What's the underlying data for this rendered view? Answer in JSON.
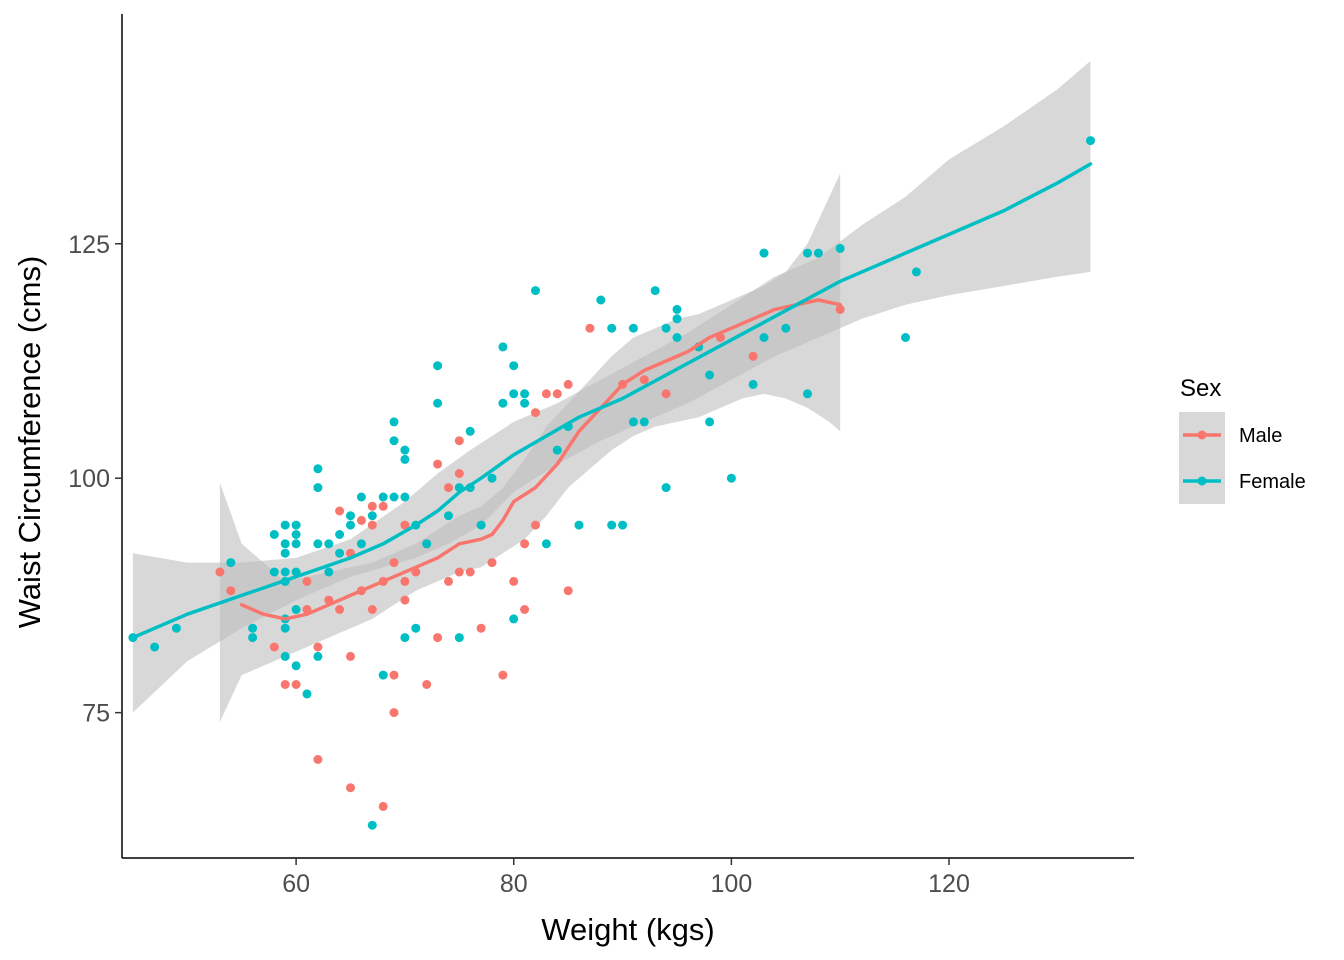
{
  "chart_data": {
    "type": "scatter",
    "xlabel": "Weight (kgs)",
    "ylabel": "Waist Circumference (cms)",
    "xlim": [
      44,
      137
    ],
    "ylim": [
      59.5,
      149.5
    ],
    "x_ticks": [
      60,
      80,
      100,
      120
    ],
    "y_ticks": [
      75,
      100,
      125
    ],
    "x_tick_labels": [
      "60",
      "80",
      "100",
      "120"
    ],
    "y_tick_labels": [
      "75",
      "100",
      "125"
    ],
    "grid": false,
    "legend": {
      "title": "Sex",
      "position": "right"
    },
    "colors": {
      "Male": "#F8766D",
      "Female": "#00BFC4",
      "band": "#BEBEBE"
    },
    "series": [
      {
        "name": "Male",
        "color": "#F8766D",
        "points": [
          [
            53,
            90
          ],
          [
            54,
            88
          ],
          [
            58,
            82
          ],
          [
            59,
            78
          ],
          [
            60,
            78
          ],
          [
            61,
            86
          ],
          [
            61,
            89
          ],
          [
            62,
            82
          ],
          [
            62,
            70
          ],
          [
            63,
            87
          ],
          [
            64,
            96.5
          ],
          [
            64,
            86
          ],
          [
            65,
            92
          ],
          [
            65,
            81
          ],
          [
            65,
            67
          ],
          [
            66,
            88
          ],
          [
            66,
            95.5
          ],
          [
            67,
            97
          ],
          [
            67,
            95
          ],
          [
            67,
            86
          ],
          [
            68,
            65
          ],
          [
            68,
            97
          ],
          [
            68,
            89
          ],
          [
            69,
            91
          ],
          [
            69,
            79
          ],
          [
            69,
            75
          ],
          [
            70,
            95
          ],
          [
            70,
            89
          ],
          [
            70,
            87
          ],
          [
            71,
            90
          ],
          [
            72,
            93
          ],
          [
            72,
            78
          ],
          [
            73,
            101.5
          ],
          [
            73,
            83
          ],
          [
            74,
            99
          ],
          [
            74,
            89
          ],
          [
            75,
            104
          ],
          [
            75,
            100.5
          ],
          [
            75,
            90
          ],
          [
            76,
            90
          ],
          [
            77,
            84
          ],
          [
            78,
            91
          ],
          [
            79,
            79
          ],
          [
            80,
            89
          ],
          [
            81,
            86
          ],
          [
            81,
            93
          ],
          [
            82,
            107
          ],
          [
            82,
            95
          ],
          [
            83,
            109
          ],
          [
            84,
            109
          ],
          [
            85,
            110
          ],
          [
            85,
            88
          ],
          [
            87,
            116
          ],
          [
            90,
            110
          ],
          [
            92,
            110.5
          ],
          [
            94,
            109
          ],
          [
            97,
            114
          ],
          [
            99,
            115
          ],
          [
            102,
            113
          ],
          [
            110,
            118
          ]
        ],
        "fit": [
          [
            55,
            86.5
          ],
          [
            57,
            85.5
          ],
          [
            59,
            85
          ],
          [
            61,
            85.5
          ],
          [
            63,
            86.5
          ],
          [
            65,
            87.5
          ],
          [
            67,
            88.5
          ],
          [
            69,
            89.5
          ],
          [
            71,
            90.5
          ],
          [
            73,
            91.5
          ],
          [
            75,
            93
          ],
          [
            77,
            93.5
          ],
          [
            78,
            94
          ],
          [
            79,
            95.5
          ],
          [
            80,
            97.5
          ],
          [
            82,
            99
          ],
          [
            84,
            101.5
          ],
          [
            86,
            105
          ],
          [
            88,
            107.5
          ],
          [
            90,
            110
          ],
          [
            92,
            111.5
          ],
          [
            94,
            112.5
          ],
          [
            96,
            113.5
          ],
          [
            98,
            115
          ],
          [
            100,
            116
          ],
          [
            102,
            117
          ],
          [
            104,
            118
          ],
          [
            106,
            118.5
          ],
          [
            108,
            119
          ],
          [
            110,
            118.5
          ]
        ],
        "band_upper": [
          [
            53,
            99.5
          ],
          [
            55,
            93
          ],
          [
            57,
            91
          ],
          [
            59,
            89
          ],
          [
            61,
            89.5
          ],
          [
            63,
            90
          ],
          [
            65,
            90.5
          ],
          [
            67,
            91
          ],
          [
            69,
            92
          ],
          [
            71,
            93
          ],
          [
            73,
            94.5
          ],
          [
            75,
            96
          ],
          [
            77,
            97
          ],
          [
            79,
            99
          ],
          [
            81,
            102
          ],
          [
            83,
            105.5
          ],
          [
            85,
            108
          ],
          [
            87,
            110.5
          ],
          [
            89,
            113
          ],
          [
            91,
            115
          ],
          [
            93,
            116
          ],
          [
            95,
            117
          ],
          [
            97,
            117.5
          ],
          [
            99,
            118.5
          ],
          [
            101,
            119.5
          ],
          [
            103,
            120.5
          ],
          [
            105,
            122
          ],
          [
            107,
            125
          ],
          [
            109,
            130
          ],
          [
            110,
            132.5
          ]
        ],
        "band_lower": [
          [
            53,
            74
          ],
          [
            55,
            79
          ],
          [
            57,
            80
          ],
          [
            59,
            81
          ],
          [
            61,
            82
          ],
          [
            63,
            83
          ],
          [
            65,
            84
          ],
          [
            67,
            85
          ],
          [
            69,
            86.5
          ],
          [
            71,
            88
          ],
          [
            73,
            89
          ],
          [
            75,
            90
          ],
          [
            77,
            90.5
          ],
          [
            79,
            92
          ],
          [
            81,
            93.5
          ],
          [
            83,
            96
          ],
          [
            85,
            99
          ],
          [
            87,
            101
          ],
          [
            89,
            103
          ],
          [
            91,
            104.5
          ],
          [
            93,
            105.5
          ],
          [
            95,
            106
          ],
          [
            97,
            106.5
          ],
          [
            99,
            107.5
          ],
          [
            101,
            108.5
          ],
          [
            103,
            109
          ],
          [
            105,
            108.5
          ],
          [
            107,
            107.5
          ],
          [
            109,
            106
          ],
          [
            110,
            105
          ]
        ]
      },
      {
        "name": "Female",
        "color": "#00BFC4",
        "points": [
          [
            45,
            83
          ],
          [
            47,
            82
          ],
          [
            49,
            84
          ],
          [
            54,
            91
          ],
          [
            56,
            84
          ],
          [
            56,
            83
          ],
          [
            58,
            94
          ],
          [
            58,
            90
          ],
          [
            59,
            95
          ],
          [
            59,
            93
          ],
          [
            59,
            92
          ],
          [
            59,
            90
          ],
          [
            59,
            89
          ],
          [
            59,
            85
          ],
          [
            59,
            84
          ],
          [
            59,
            81
          ],
          [
            60,
            95
          ],
          [
            60,
            94
          ],
          [
            60,
            93
          ],
          [
            60,
            90
          ],
          [
            60,
            86
          ],
          [
            60,
            80
          ],
          [
            61,
            77
          ],
          [
            62,
            101
          ],
          [
            62,
            99
          ],
          [
            62,
            93
          ],
          [
            62,
            81
          ],
          [
            63,
            93
          ],
          [
            63,
            90
          ],
          [
            64,
            94
          ],
          [
            64,
            92
          ],
          [
            65,
            95
          ],
          [
            65,
            96
          ],
          [
            66,
            98
          ],
          [
            66,
            93
          ],
          [
            67,
            63
          ],
          [
            67,
            96
          ],
          [
            68,
            98
          ],
          [
            68,
            79
          ],
          [
            69,
            106
          ],
          [
            69,
            104
          ],
          [
            69,
            98
          ],
          [
            70,
            103
          ],
          [
            70,
            102
          ],
          [
            70,
            98
          ],
          [
            70,
            83
          ],
          [
            71,
            95
          ],
          [
            71,
            84
          ],
          [
            72,
            93
          ],
          [
            73,
            112
          ],
          [
            73,
            108
          ],
          [
            74,
            96
          ],
          [
            75,
            99
          ],
          [
            75,
            83
          ],
          [
            76,
            105
          ],
          [
            76,
            99
          ],
          [
            77,
            95
          ],
          [
            78,
            100
          ],
          [
            79,
            114
          ],
          [
            79,
            108
          ],
          [
            80,
            112
          ],
          [
            80,
            109
          ],
          [
            80,
            85
          ],
          [
            81,
            109
          ],
          [
            81,
            108
          ],
          [
            82,
            120
          ],
          [
            83,
            93
          ],
          [
            84,
            103
          ],
          [
            85,
            105.5
          ],
          [
            86,
            95
          ],
          [
            88,
            119
          ],
          [
            89,
            116
          ],
          [
            89,
            95
          ],
          [
            90,
            95
          ],
          [
            91,
            116
          ],
          [
            91,
            106
          ],
          [
            92,
            106
          ],
          [
            93,
            120
          ],
          [
            94,
            116
          ],
          [
            94,
            99
          ],
          [
            95,
            118
          ],
          [
            95,
            117
          ],
          [
            95,
            115
          ],
          [
            97,
            114
          ],
          [
            98,
            106
          ],
          [
            98,
            111
          ],
          [
            100,
            100
          ],
          [
            102,
            110
          ],
          [
            103,
            124
          ],
          [
            103,
            115
          ],
          [
            105,
            116
          ],
          [
            107,
            124
          ],
          [
            107,
            109
          ],
          [
            108,
            124
          ],
          [
            110,
            124.5
          ],
          [
            116,
            115
          ],
          [
            117,
            122
          ],
          [
            133,
            136
          ]
        ],
        "fit": [
          [
            45,
            83
          ],
          [
            50,
            85.5
          ],
          [
            55,
            87.5
          ],
          [
            60,
            89.5
          ],
          [
            65,
            91.5
          ],
          [
            68,
            93
          ],
          [
            71,
            95
          ],
          [
            73,
            96.5
          ],
          [
            75,
            98.5
          ],
          [
            77,
            100
          ],
          [
            80,
            102.5
          ],
          [
            83,
            104.5
          ],
          [
            86,
            106.5
          ],
          [
            90,
            108.5
          ],
          [
            94,
            111
          ],
          [
            98,
            113.5
          ],
          [
            102,
            116
          ],
          [
            106,
            118.5
          ],
          [
            110,
            121
          ],
          [
            115,
            123.5
          ],
          [
            120,
            126
          ],
          [
            125,
            128.5
          ],
          [
            130,
            131.5
          ],
          [
            133,
            133.5
          ]
        ],
        "band_upper": [
          [
            45,
            92
          ],
          [
            50,
            91
          ],
          [
            55,
            91
          ],
          [
            60,
            91.5
          ],
          [
            65,
            93.5
          ],
          [
            70,
            97.5
          ],
          [
            73,
            100.5
          ],
          [
            76,
            103
          ],
          [
            80,
            106
          ],
          [
            84,
            108
          ],
          [
            88,
            110.5
          ],
          [
            92,
            113
          ],
          [
            96,
            115.5
          ],
          [
            100,
            118.5
          ],
          [
            104,
            121.5
          ],
          [
            108,
            123.5
          ],
          [
            112,
            127
          ],
          [
            116,
            130
          ],
          [
            120,
            134
          ],
          [
            125,
            137.5
          ],
          [
            130,
            141.5
          ],
          [
            133,
            144.5
          ]
        ],
        "band_lower": [
          [
            45,
            75
          ],
          [
            50,
            80.5
          ],
          [
            55,
            84
          ],
          [
            60,
            87
          ],
          [
            65,
            89.5
          ],
          [
            68,
            90.5
          ],
          [
            71,
            91.5
          ],
          [
            74,
            93
          ],
          [
            77,
            95
          ],
          [
            80,
            98.5
          ],
          [
            84,
            101.5
          ],
          [
            88,
            104
          ],
          [
            92,
            106
          ],
          [
            96,
            108
          ],
          [
            100,
            110.5
          ],
          [
            104,
            113
          ],
          [
            108,
            115
          ],
          [
            112,
            117
          ],
          [
            116,
            118.5
          ],
          [
            120,
            119.5
          ],
          [
            125,
            120.5
          ],
          [
            130,
            121.5
          ],
          [
            133,
            122
          ]
        ]
      }
    ]
  }
}
